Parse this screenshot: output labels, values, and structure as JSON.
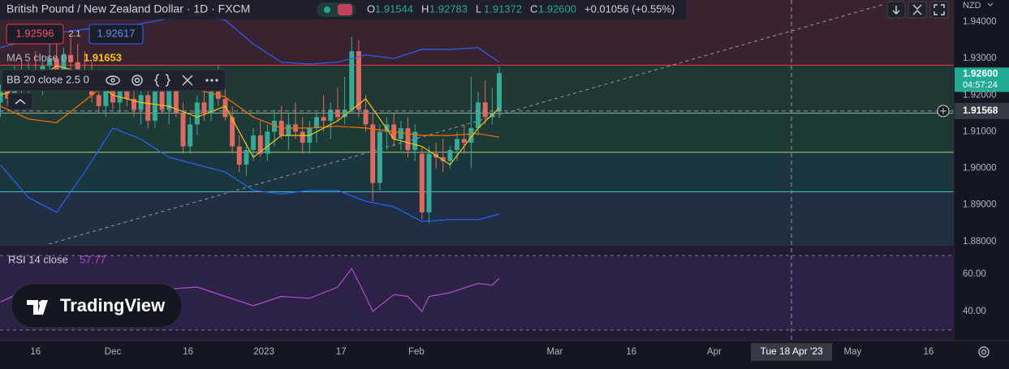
{
  "header": {
    "title": "British Pound / New Zealand Dollar · 1D · FXCM",
    "ohlc": [
      {
        "key": "O",
        "value": "1.91544"
      },
      {
        "key": "H",
        "value": "1.92783"
      },
      {
        "key": "L",
        "value": "1.91372"
      },
      {
        "key": "C",
        "value": "1.92600"
      }
    ],
    "change": "+0.01056 (+0.55%)"
  },
  "trade": {
    "sell": "1.92596",
    "spread": "2.1",
    "buy": "1.92617"
  },
  "legend": {
    "ma": "MA 5 close 0",
    "ma_value": "1.91653",
    "bb": "BB 20 close 2.5 0",
    "rsi": "RSI 14 close",
    "rsi_value": "57.77"
  },
  "logo": "TradingView",
  "currency": "NZD",
  "chart_data": {
    "type": "candlestick",
    "up_color": "#3aa897",
    "down_color": "#dd6a62",
    "candles": [
      [
        1.918,
        1.923,
        1.914,
        1.921
      ],
      [
        1.921,
        1.926,
        1.917,
        1.919
      ],
      [
        1.919,
        1.928,
        1.916,
        1.925
      ],
      [
        1.925,
        1.93,
        1.92,
        1.922
      ],
      [
        1.922,
        1.929,
        1.918,
        1.927
      ],
      [
        1.927,
        1.932,
        1.923,
        1.924
      ],
      [
        1.924,
        1.931,
        1.92,
        1.928
      ],
      [
        1.928,
        1.934,
        1.925,
        1.93
      ],
      [
        1.93,
        1.935,
        1.926,
        1.927
      ],
      [
        1.927,
        1.933,
        1.923,
        1.931
      ],
      [
        1.931,
        1.936,
        1.927,
        1.929
      ],
      [
        1.929,
        1.934,
        1.924,
        1.926
      ],
      [
        1.926,
        1.932,
        1.921,
        1.923
      ],
      [
        1.923,
        1.929,
        1.918,
        1.92
      ],
      [
        1.92,
        1.927,
        1.915,
        1.917
      ],
      [
        1.917,
        1.925,
        1.914,
        1.922
      ],
      [
        1.922,
        1.927,
        1.916,
        1.918
      ],
      [
        1.918,
        1.924,
        1.915,
        1.921
      ],
      [
        1.921,
        1.926,
        1.917,
        1.919
      ],
      [
        1.919,
        1.923,
        1.914,
        1.916
      ],
      [
        1.916,
        1.922,
        1.912,
        1.92
      ],
      [
        1.92,
        1.924,
        1.911,
        1.913
      ],
      [
        1.913,
        1.923,
        1.911,
        1.921
      ],
      [
        1.921,
        1.926,
        1.915,
        1.916
      ],
      [
        1.916,
        1.923,
        1.912,
        1.922
      ],
      [
        1.922,
        1.925,
        1.914,
        1.915
      ],
      [
        1.915,
        1.918,
        1.904,
        1.906
      ],
      [
        1.906,
        1.914,
        1.904,
        1.912
      ],
      [
        1.912,
        1.92,
        1.909,
        1.918
      ],
      [
        1.918,
        1.922,
        1.913,
        1.915
      ],
      [
        1.915,
        1.924,
        1.913,
        1.921
      ],
      [
        1.921,
        1.928,
        1.917,
        1.919
      ],
      [
        1.919,
        1.923,
        1.913,
        1.914
      ],
      [
        1.914,
        1.917,
        1.904,
        1.906
      ],
      [
        1.906,
        1.909,
        1.899,
        1.901
      ],
      [
        1.901,
        1.907,
        1.898,
        1.905
      ],
      [
        1.905,
        1.911,
        1.902,
        1.909
      ],
      [
        1.909,
        1.913,
        1.903,
        1.904
      ],
      [
        1.904,
        1.912,
        1.902,
        1.91
      ],
      [
        1.91,
        1.916,
        1.906,
        1.913
      ],
      [
        1.913,
        1.917,
        1.908,
        1.909
      ],
      [
        1.909,
        1.915,
        1.905,
        1.912
      ],
      [
        1.912,
        1.918,
        1.908,
        1.91
      ],
      [
        1.91,
        1.914,
        1.904,
        1.907
      ],
      [
        1.907,
        1.913,
        1.904,
        1.911
      ],
      [
        1.911,
        1.915,
        1.907,
        1.914
      ],
      [
        1.914,
        1.92,
        1.91,
        1.913
      ],
      [
        1.913,
        1.918,
        1.908,
        1.916
      ],
      [
        1.916,
        1.922,
        1.913,
        1.914
      ],
      [
        1.914,
        1.925,
        1.912,
        1.916
      ],
      [
        1.916,
        1.936,
        1.915,
        1.932
      ],
      [
        1.932,
        1.935,
        1.914,
        1.916
      ],
      [
        1.916,
        1.92,
        1.91,
        1.912
      ],
      [
        1.912,
        1.915,
        1.891,
        1.896
      ],
      [
        1.896,
        1.912,
        1.894,
        1.91
      ],
      [
        1.91,
        1.914,
        1.905,
        1.912
      ],
      [
        1.912,
        1.915,
        1.906,
        1.908
      ],
      [
        1.908,
        1.913,
        1.905,
        1.911
      ],
      [
        1.911,
        1.914,
        1.903,
        1.905
      ],
      [
        1.905,
        1.912,
        1.902,
        1.91
      ],
      [
        1.904,
        1.906,
        1.886,
        1.888
      ],
      [
        1.888,
        1.906,
        1.885,
        1.904
      ],
      [
        1.904,
        1.907,
        1.9,
        1.903
      ],
      [
        1.903,
        1.908,
        1.899,
        1.902
      ],
      [
        1.902,
        1.906,
        1.9,
        1.905
      ],
      [
        1.905,
        1.91,
        1.902,
        1.908
      ],
      [
        1.908,
        1.912,
        1.904,
        1.907
      ],
      [
        1.907,
        1.925,
        1.9,
        1.911
      ],
      [
        1.911,
        1.921,
        1.909,
        1.918
      ],
      [
        1.918,
        1.924,
        1.912,
        1.914
      ],
      [
        1.914,
        1.922,
        1.912,
        1.915
      ],
      [
        1.91544,
        1.92783,
        1.91372,
        1.926
      ]
    ],
    "xlim": [
      -0.06,
      135.7
    ],
    "ylim": [
      1.8793,
      1.946
    ],
    "yticks": [
      {
        "value": 1.94,
        "label": "1.94000"
      },
      {
        "value": 1.93,
        "label": "1.93000"
      },
      {
        "value": 1.92,
        "label": "1.92000"
      },
      {
        "value": 1.91,
        "label": "1.91000"
      },
      {
        "value": 1.9,
        "label": "1.90000"
      },
      {
        "value": 1.89,
        "label": "1.89000"
      },
      {
        "value": 1.88,
        "label": "1.88000"
      }
    ],
    "xticks": [
      {
        "value": 5.0,
        "label": "16"
      },
      {
        "value": 16,
        "label": "Dec"
      },
      {
        "value": 26.7,
        "label": "16"
      },
      {
        "value": 37.5,
        "label": "2023"
      },
      {
        "value": 48.5,
        "label": "17"
      },
      {
        "value": 59.2,
        "label": "Feb"
      },
      {
        "value": 78.9,
        "label": "Mar"
      },
      {
        "value": 89.8,
        "label": "16"
      },
      {
        "value": 101.6,
        "label": "Apr"
      },
      {
        "value": 121.3,
        "label": "May"
      },
      {
        "value": 132.1,
        "label": "16"
      }
    ],
    "last_price": {
      "value": 1.926,
      "label": "1.92600",
      "countdown": "04:57:24"
    },
    "crosshair": {
      "price": 1.91568,
      "label": "1.91568",
      "x": 112.6,
      "date": "Tue 18 Apr '23"
    },
    "levels": [
      {
        "value": 1.8936,
        "color": "#3fc1c9"
      },
      {
        "value": 1.9044,
        "color": "#a5d36b"
      },
      {
        "value": 1.9151,
        "color": "#8fae8f"
      },
      {
        "value": 1.9282,
        "color": "#f23645"
      }
    ],
    "zone_colors": [
      "#212f45",
      "#1b363c",
      "#1d3a36",
      "#213733",
      "#3a2330"
    ],
    "trendline": {
      "x": [
        6.9,
        125.9
      ],
      "y": [
        1.8793,
        1.9449
      ],
      "color": "#9598a1"
    },
    "overlays": [
      {
        "name": "BB upper",
        "color": "#2962ff",
        "x": [
          0,
          4,
          8,
          12,
          16,
          20,
          24,
          28,
          32,
          36,
          40,
          44,
          48,
          52,
          56,
          60,
          64,
          68,
          71
        ],
        "values": [
          1.933,
          1.935,
          1.937,
          1.938,
          1.9385,
          1.9395,
          1.941,
          1.942,
          1.9405,
          1.934,
          1.929,
          1.9285,
          1.929,
          1.931,
          1.93,
          1.9325,
          1.9325,
          1.933,
          1.929
        ]
      },
      {
        "name": "BB lower",
        "color": "#2962ff",
        "x": [
          0,
          4,
          8,
          12,
          16,
          20,
          24,
          28,
          32,
          36,
          40,
          44,
          48,
          52,
          56,
          60,
          64,
          68,
          71
        ],
        "values": [
          1.901,
          1.892,
          1.888,
          1.899,
          1.911,
          1.908,
          1.903,
          1.901,
          1.899,
          1.894,
          1.893,
          1.894,
          1.894,
          1.891,
          1.8895,
          1.8855,
          1.886,
          1.886,
          1.8875
        ]
      },
      {
        "name": "BB basis",
        "color": "#ff6d00",
        "x": [
          0,
          4,
          8,
          12,
          16,
          20,
          24,
          28,
          32,
          36,
          40,
          44,
          48,
          52,
          56,
          60,
          64,
          68,
          71
        ],
        "values": [
          1.917,
          1.9135,
          1.9125,
          1.9185,
          1.9245,
          1.9235,
          1.922,
          1.9215,
          1.9195,
          1.914,
          1.911,
          1.911,
          1.9115,
          1.911,
          1.91,
          1.909,
          1.909,
          1.9095,
          1.9085
        ]
      },
      {
        "name": "MA",
        "color": "#f5c518",
        "x": [
          0,
          4,
          8,
          12,
          16,
          20,
          24,
          28,
          32,
          36,
          40,
          44,
          48,
          52,
          56,
          60,
          64,
          68,
          71
        ],
        "values": [
          1.92,
          1.923,
          1.928,
          1.926,
          1.92,
          1.918,
          1.917,
          1.914,
          1.917,
          1.903,
          1.909,
          1.909,
          1.913,
          1.919,
          1.908,
          1.906,
          1.901,
          1.911,
          1.91653
        ]
      }
    ],
    "rsi": {
      "color": "#a94fcf",
      "x": [
        0,
        4,
        8,
        12,
        16,
        20,
        24,
        28,
        32,
        36,
        40,
        44,
        48,
        50,
        52,
        53,
        56,
        58,
        60,
        61,
        64,
        68,
        70,
        71
      ],
      "values": [
        45,
        52,
        48,
        47,
        50,
        49,
        52,
        53,
        48,
        43,
        48,
        47,
        53,
        63,
        48,
        40,
        49,
        48,
        40,
        48,
        50,
        55,
        54,
        57.77
      ],
      "ylim": [
        24.3,
        75.2
      ],
      "yticks": [
        {
          "value": 60,
          "label": "60.00"
        },
        {
          "value": 40,
          "label": "40.00"
        }
      ],
      "bands": [
        70,
        30
      ]
    }
  }
}
